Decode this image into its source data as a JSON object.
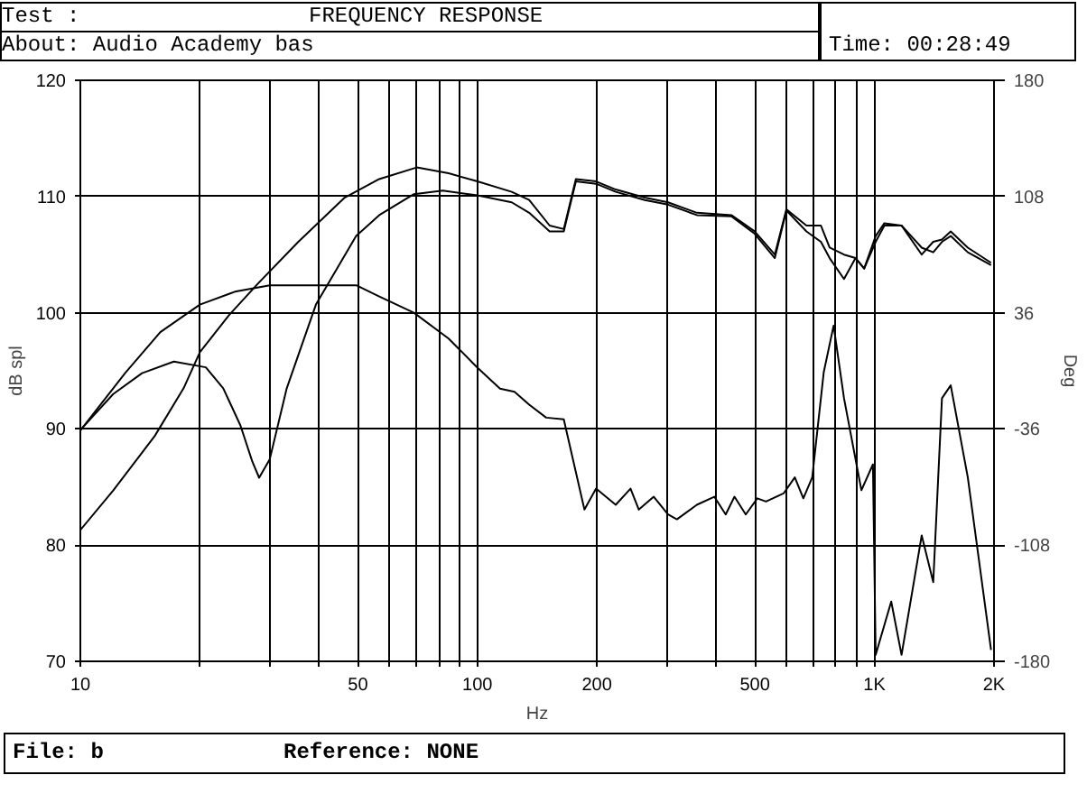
{
  "chart_data": {
    "type": "line",
    "title": "FREQUENCY RESPONSE",
    "subtitle": "About:   Audio Academy bas",
    "annotations": [
      "Test :",
      "Time: 00:28:49",
      "File: b",
      "Reference: NONE"
    ],
    "xlabel": "Hz",
    "ylabel": "dB spl",
    "y2label": "Deg",
    "log": "x",
    "grid": true,
    "xlim": [
      10,
      2000
    ],
    "ylim": [
      70,
      120
    ],
    "y2lim": [
      -180,
      180
    ],
    "xticks": [
      10,
      {
        "value": 20,
        "label": null
      },
      {
        "value": 30,
        "label": null
      },
      {
        "value": 40,
        "label": null
      },
      50,
      {
        "value": 60,
        "label": null
      },
      {
        "value": 70,
        "label": null
      },
      {
        "value": 80,
        "label": null
      },
      {
        "value": 90,
        "label": null
      },
      100,
      200,
      {
        "value": 300,
        "label": null
      },
      {
        "value": 400,
        "label": null
      },
      500,
      {
        "value": 600,
        "label": null
      },
      {
        "value": 700,
        "label": null
      },
      {
        "value": 800,
        "label": null
      },
      {
        "value": 900,
        "label": null
      },
      {
        "value": 1000,
        "label": "1K"
      },
      {
        "value": 2000,
        "label": "2K"
      }
    ],
    "yticks": [
      70,
      80,
      90,
      100,
      110,
      120
    ],
    "y2ticks": [
      -180,
      -108,
      -36,
      36,
      108,
      180
    ],
    "series": [
      {
        "color": "#000000",
        "x": [
          10,
          12.1,
          15.4,
          18.2,
          20,
          23.7,
          28,
          35.4,
          46.3,
          56.6,
          70.3,
          84.6,
          100,
          122,
          135,
          152,
          165,
          177,
          199,
          223,
          264,
          302,
          357,
          436,
          499,
          561,
          600,
          674,
          733,
          771,
          838,
          896,
          942,
          1007,
          1059,
          1170,
          1315,
          1406,
          1479,
          1556,
          1718,
          1966
        ],
        "values": [
          81.3,
          84.7,
          89.4,
          93.5,
          96.6,
          99.8,
          102.5,
          106.1,
          109.9,
          111.5,
          112.5,
          112.0,
          111.3,
          110.4,
          109.7,
          107.5,
          107.2,
          111.5,
          111.3,
          110.6,
          109.9,
          109.5,
          108.6,
          108.4,
          107.0,
          105.0,
          108.9,
          107.5,
          107.5,
          105.6,
          105.0,
          104.7,
          103.8,
          106.6,
          107.7,
          107.5,
          105.0,
          106.1,
          106.3,
          107.0,
          105.6,
          104.3
        ]
      },
      {
        "color": "#000000",
        "x": [
          10,
          12.1,
          14.3,
          17.2,
          20.7,
          22.9,
          25.3,
          27.1,
          28.2,
          30,
          33.1,
          39.2,
          49.5,
          56.6,
          69.2,
          81.8,
          100,
          122,
          135,
          152,
          165,
          177,
          199,
          223,
          264,
          302,
          357,
          436,
          499,
          561,
          600,
          674,
          733,
          771,
          838,
          896,
          942,
          1007,
          1059,
          1170,
          1315,
          1406,
          1479,
          1556,
          1718,
          1966
        ],
        "values": [
          89.9,
          93.0,
          94.8,
          95.8,
          95.3,
          93.5,
          90.3,
          87.2,
          85.8,
          87.4,
          93.5,
          100.7,
          106.6,
          108.4,
          110.2,
          110.5,
          110.1,
          109.5,
          108.6,
          107.0,
          107.0,
          111.3,
          111.1,
          110.4,
          109.7,
          109.3,
          108.4,
          108.3,
          106.8,
          104.7,
          108.8,
          107.0,
          106.1,
          104.7,
          102.9,
          104.7,
          103.8,
          106.1,
          107.5,
          107.5,
          105.6,
          105.2,
          106.1,
          106.6,
          105.2,
          104.1
        ]
      },
      {
        "color": "#000000",
        "axis": "y2",
        "x": [
          10,
          13,
          15.9,
          20,
          24.5,
          30,
          37.8,
          49.5,
          56.6,
          69.2,
          84.6,
          100,
          114,
          124,
          135,
          149,
          165,
          186,
          199,
          223,
          243,
          255,
          278,
          302,
          318,
          357,
          395,
          422,
          444,
          474,
          507,
          533,
          590,
          630,
          662,
          697,
          745,
          789,
          838,
          927,
          991,
          1007,
          1102,
          1170,
          1315,
          1406,
          1479,
          1556,
          1718,
          1966
        ],
        "values": [
          -37,
          -1,
          24,
          41,
          49,
          53,
          53,
          53,
          46,
          36,
          20,
          2,
          -11,
          -13,
          -21,
          -29,
          -30,
          -86,
          -73,
          -83,
          -73,
          -86,
          -78,
          -89,
          -92,
          -83,
          -78,
          -89,
          -78,
          -89,
          -79,
          -81,
          -76,
          -66,
          -79,
          -66,
          -1,
          28,
          -17,
          -74,
          -58,
          -176,
          -143,
          -176,
          -102,
          -131,
          -17,
          -9,
          -66,
          -173
        ]
      }
    ]
  }
}
